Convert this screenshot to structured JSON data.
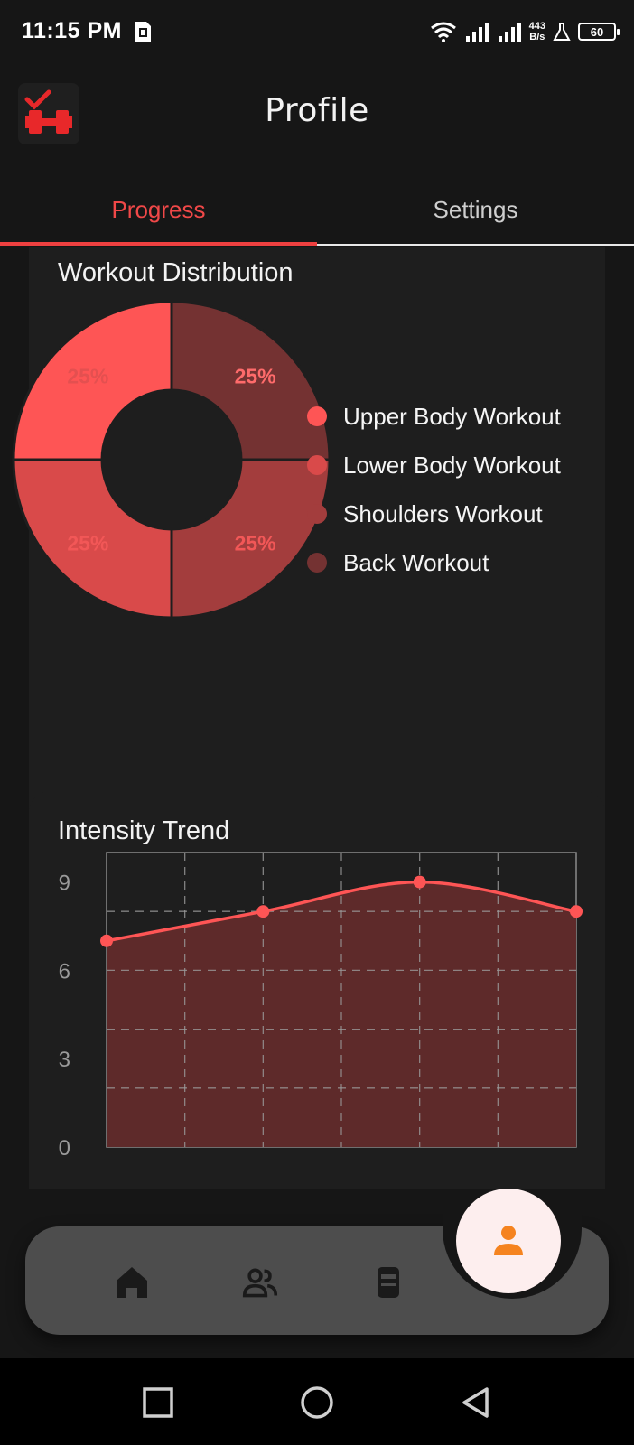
{
  "status_bar": {
    "time": "11:15 PM",
    "net_speed_value": "443",
    "net_speed_unit": "B/s",
    "battery": "60",
    "icons": [
      "sim-card-icon",
      "wifi-icon",
      "signal-icon",
      "signal-icon",
      "flask-icon",
      "battery-icon"
    ]
  },
  "header": {
    "title": "Profile",
    "logo_icon": "dumbbell-check-logo"
  },
  "tabs": [
    {
      "label": "Progress",
      "active": true
    },
    {
      "label": "Settings",
      "active": false
    }
  ],
  "colors": {
    "accent": "#f04848",
    "background": "#161616",
    "card": "#1e1e1e",
    "nav_bar": "#4d4d4d",
    "profile_icon": "#f5831f"
  },
  "distribution_card": {
    "title": "Workout Distribution",
    "chart_data": {
      "type": "pie",
      "donut": true,
      "labels": [
        "Upper Body Workout",
        "Lower Body Workout",
        "Shoulders Workout",
        "Back Workout"
      ],
      "values": [
        25,
        25,
        25,
        25
      ],
      "slice_labels": [
        "25%",
        "25%",
        "25%",
        "25%"
      ],
      "colors": [
        "#fe5555",
        "#d94a4a",
        "#a33d3d",
        "#743232"
      ],
      "legend_position": "right"
    }
  },
  "intensity_card": {
    "title": "Intensity Trend",
    "chart_data": {
      "type": "area",
      "x": [
        0,
        1,
        2,
        3,
        4,
        5,
        6
      ],
      "values": [
        7,
        null,
        8,
        null,
        9,
        null,
        8
      ],
      "y_ticks": [
        "0",
        "3",
        "6",
        "9"
      ],
      "ylim": [
        0,
        10
      ],
      "grid": true,
      "line_color": "#fe5555",
      "fill_color": "#5e2a2a"
    }
  },
  "bottom_nav": {
    "items": [
      {
        "icon": "home-icon"
      },
      {
        "icon": "community-icon"
      },
      {
        "icon": "gym-icon"
      },
      {
        "icon": "profile-icon",
        "active": true
      }
    ]
  },
  "system_nav": {
    "items": [
      "recent-apps-icon",
      "home-circle-icon",
      "back-triangle-icon"
    ]
  }
}
